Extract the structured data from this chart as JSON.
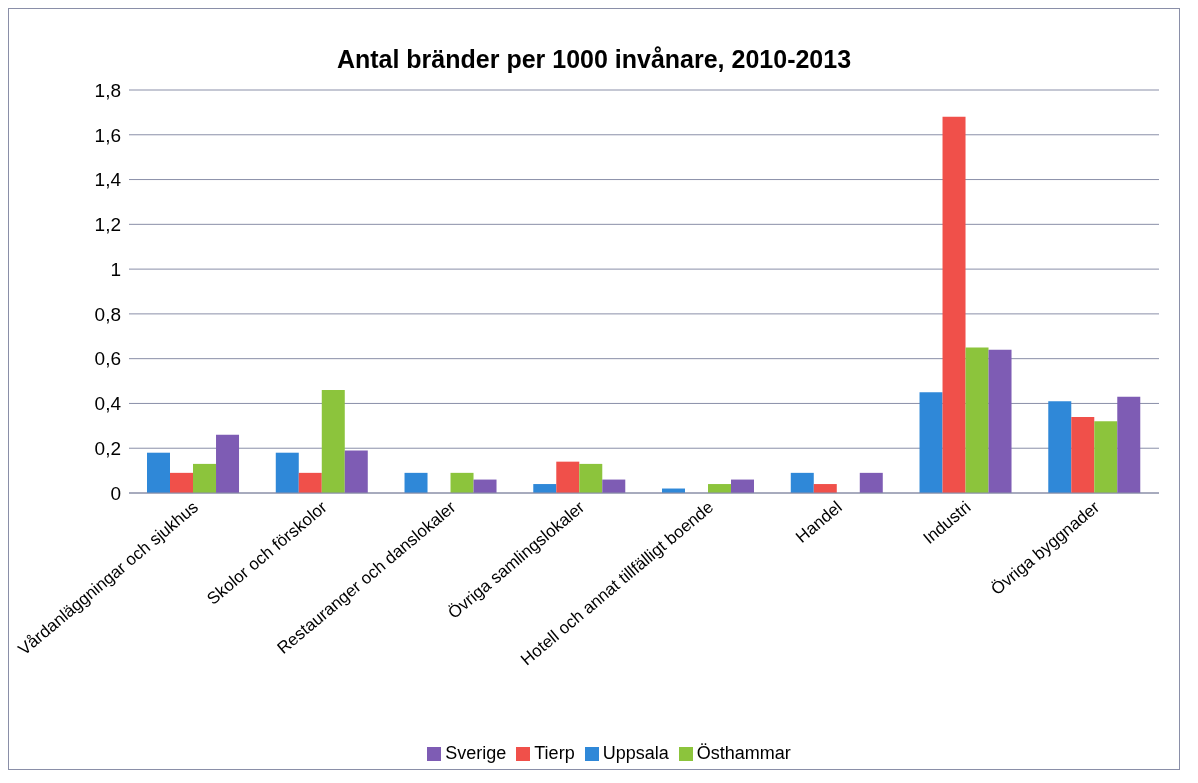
{
  "chart_data": {
    "type": "bar",
    "title": "Antal bränder per 1000 invånare, 2010-2013",
    "categories": [
      "Vårdanläggningar och sjukhus",
      "Skolor och förskolor",
      "Restauranger och danslokaler",
      "Övriga samlingslokaler",
      "Hotell och annat tillfälligt boende",
      "Handel",
      "Industri",
      "Övriga byggnader"
    ],
    "series": [
      {
        "name": "Uppsala",
        "color": "#2f88d8",
        "values": [
          0.18,
          0.18,
          0.09,
          0.04,
          0.02,
          0.09,
          0.45,
          0.41
        ]
      },
      {
        "name": "Tierp",
        "color": "#f0504a",
        "values": [
          0.09,
          0.09,
          0,
          0.14,
          0,
          0.04,
          1.68,
          0.34
        ]
      },
      {
        "name": "Östhammar",
        "color": "#8cc43c",
        "values": [
          0.13,
          0.46,
          0.09,
          0.13,
          0.04,
          0,
          0.65,
          0.32
        ]
      },
      {
        "name": "Sverige",
        "color": "#7e5cb4",
        "values": [
          0.26,
          0.19,
          0.06,
          0.06,
          0.06,
          0.09,
          0.64,
          0.43
        ]
      }
    ],
    "ylim": [
      0,
      1.8
    ],
    "yticks": [
      0,
      {
        "value": 0.2,
        "label": "0,2"
      },
      {
        "value": 0.4,
        "label": "0,4"
      },
      {
        "value": 0.6,
        "label": "0,6"
      },
      {
        "value": 0.8,
        "label": "0,8"
      },
      1,
      {
        "value": 1.2,
        "label": "1,2"
      },
      {
        "value": 1.4,
        "label": "1,4"
      },
      {
        "value": 1.6,
        "label": "1,6"
      },
      {
        "value": 1.8,
        "label": "1,8"
      }
    ],
    "grid": "y",
    "legend": "bottom"
  }
}
